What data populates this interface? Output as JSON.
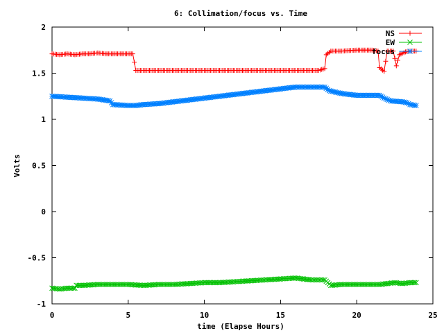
{
  "chart_data": {
    "type": "line",
    "title": "6: Collimation/focus vs. Time",
    "xlabel": "time (Elapse Hours)",
    "ylabel": "Volts",
    "xlim": [
      0,
      25
    ],
    "ylim": [
      -1,
      2
    ],
    "x_ticks": [
      "0",
      "5",
      "10",
      "15",
      "20",
      "25"
    ],
    "y_ticks": [
      "-1",
      "-0.5",
      "0",
      "0.5",
      "1",
      "1.5",
      "2"
    ],
    "grid": false,
    "legend_position": "top-right",
    "series": [
      {
        "name": "NS",
        "color": "#ff0000",
        "marker": "plus",
        "points": [
          [
            0.0,
            1.71
          ],
          [
            0.5,
            1.7
          ],
          [
            1.0,
            1.71
          ],
          [
            1.5,
            1.7
          ],
          [
            2.0,
            1.71
          ],
          [
            2.5,
            1.71
          ],
          [
            3.0,
            1.72
          ],
          [
            3.5,
            1.71
          ],
          [
            4.0,
            1.71
          ],
          [
            4.5,
            1.71
          ],
          [
            5.0,
            1.71
          ],
          [
            5.3,
            1.71
          ],
          [
            5.5,
            1.53
          ],
          [
            6.0,
            1.53
          ],
          [
            8.0,
            1.53
          ],
          [
            10.0,
            1.53
          ],
          [
            12.0,
            1.53
          ],
          [
            14.0,
            1.53
          ],
          [
            16.0,
            1.53
          ],
          [
            17.5,
            1.53
          ],
          [
            17.9,
            1.55
          ],
          [
            18.0,
            1.7
          ],
          [
            18.3,
            1.74
          ],
          [
            19.0,
            1.74
          ],
          [
            20.0,
            1.75
          ],
          [
            21.0,
            1.75
          ],
          [
            21.4,
            1.74
          ],
          [
            21.5,
            1.56
          ],
          [
            21.8,
            1.52
          ],
          [
            22.0,
            1.74
          ],
          [
            22.4,
            1.74
          ],
          [
            22.6,
            1.58
          ],
          [
            22.8,
            1.7
          ],
          [
            23.2,
            1.73
          ],
          [
            23.5,
            1.74
          ],
          [
            23.9,
            1.74
          ]
        ]
      },
      {
        "name": "EW",
        "color": "#00c000",
        "marker": "cross",
        "points": [
          [
            0.0,
            -0.83
          ],
          [
            0.5,
            -0.84
          ],
          [
            1.0,
            -0.83
          ],
          [
            1.5,
            -0.83
          ],
          [
            1.6,
            -0.8
          ],
          [
            2.0,
            -0.8
          ],
          [
            3.0,
            -0.79
          ],
          [
            4.0,
            -0.79
          ],
          [
            5.0,
            -0.79
          ],
          [
            6.0,
            -0.8
          ],
          [
            7.0,
            -0.79
          ],
          [
            8.0,
            -0.79
          ],
          [
            9.0,
            -0.78
          ],
          [
            10.0,
            -0.77
          ],
          [
            11.0,
            -0.77
          ],
          [
            12.0,
            -0.76
          ],
          [
            13.0,
            -0.75
          ],
          [
            14.0,
            -0.74
          ],
          [
            15.0,
            -0.73
          ],
          [
            16.0,
            -0.72
          ],
          [
            17.0,
            -0.74
          ],
          [
            17.9,
            -0.74
          ],
          [
            18.3,
            -0.8
          ],
          [
            19.0,
            -0.79
          ],
          [
            20.0,
            -0.79
          ],
          [
            21.0,
            -0.79
          ],
          [
            21.5,
            -0.79
          ],
          [
            22.0,
            -0.78
          ],
          [
            22.5,
            -0.77
          ],
          [
            23.0,
            -0.78
          ],
          [
            23.5,
            -0.77
          ],
          [
            23.9,
            -0.77
          ]
        ]
      },
      {
        "name": "focus",
        "color": "#0080ff",
        "marker": "star",
        "points": [
          [
            0.0,
            1.25
          ],
          [
            1.0,
            1.24
          ],
          [
            2.0,
            1.23
          ],
          [
            3.0,
            1.22
          ],
          [
            3.8,
            1.2
          ],
          [
            4.0,
            1.16
          ],
          [
            5.0,
            1.15
          ],
          [
            5.5,
            1.15
          ],
          [
            6.0,
            1.16
          ],
          [
            7.0,
            1.17
          ],
          [
            8.0,
            1.19
          ],
          [
            9.0,
            1.21
          ],
          [
            10.0,
            1.23
          ],
          [
            11.0,
            1.25
          ],
          [
            12.0,
            1.27
          ],
          [
            13.0,
            1.29
          ],
          [
            14.0,
            1.31
          ],
          [
            15.0,
            1.33
          ],
          [
            16.0,
            1.35
          ],
          [
            17.0,
            1.35
          ],
          [
            17.9,
            1.35
          ],
          [
            18.2,
            1.31
          ],
          [
            19.0,
            1.28
          ],
          [
            20.0,
            1.26
          ],
          [
            21.0,
            1.26
          ],
          [
            21.5,
            1.26
          ],
          [
            21.8,
            1.23
          ],
          [
            22.2,
            1.2
          ],
          [
            23.0,
            1.19
          ],
          [
            23.3,
            1.18
          ],
          [
            23.5,
            1.16
          ],
          [
            23.9,
            1.15
          ]
        ]
      }
    ]
  }
}
